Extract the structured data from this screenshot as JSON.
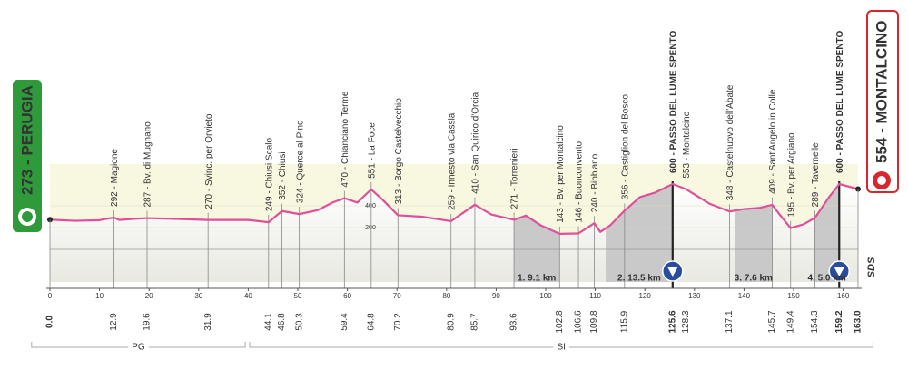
{
  "chart_data": {
    "type": "area",
    "color": "#e0509a",
    "xlim": [
      0,
      163
    ],
    "xticks": [
      0,
      10,
      20,
      30,
      40,
      50,
      60,
      70,
      80,
      90,
      100,
      110,
      120,
      130,
      140,
      150,
      160
    ],
    "ylim": [
      -300,
      700
    ],
    "yticks": [
      200,
      400
    ],
    "grid": true,
    "x": [
      0,
      5,
      10,
      12.9,
      14,
      17,
      19.6,
      25,
      31.9,
      40,
      44.1,
      46.8,
      50.3,
      54,
      57,
      59.4,
      62,
      64.8,
      67,
      70.2,
      75,
      80.9,
      85.7,
      89,
      93.6,
      96,
      99,
      102.8,
      106.6,
      109.8,
      111,
      113,
      115.9,
      119,
      122,
      125.6,
      128.3,
      133,
      137.1,
      140,
      143,
      145.7,
      147,
      149.4,
      152,
      154.3,
      157,
      159.2,
      163
    ],
    "values": [
      273,
      262,
      268,
      292,
      270,
      280,
      287,
      280,
      270,
      270,
      249,
      352,
      324,
      360,
      430,
      470,
      430,
      551,
      460,
      313,
      300,
      259,
      410,
      320,
      271,
      310,
      220,
      143,
      146,
      240,
      160,
      220,
      356,
      480,
      520,
      600,
      553,
      420,
      348,
      370,
      380,
      409,
      330,
      195,
      230,
      289,
      470,
      600,
      554
    ],
    "start": {
      "km": {
        "value": 0,
        "label": "0.0"
      },
      "label": "273 - PERUGIA"
    },
    "finish": {
      "km": {
        "value": 163,
        "label": "163.0"
      },
      "label": "554 - MONTALCINO"
    },
    "waypoints": [
      {
        "km": 12.9,
        "label": "292 - Magione"
      },
      {
        "km": 19.6,
        "label": "287 - Bv. di Mugnano"
      },
      {
        "km": 31.9,
        "label": "270 - Svinc. per Orvieto"
      },
      {
        "km": 44.1,
        "label": "249 - Chiusi Scalo"
      },
      {
        "km": 46.8,
        "label": "352 - Chiusi"
      },
      {
        "km": 50.3,
        "label": "324 - Querce al Pino"
      },
      {
        "km": 59.4,
        "label": "470 - Chianciano Terme"
      },
      {
        "km": 64.8,
        "label": "551 - La Foce"
      },
      {
        "km": 70.2,
        "label": "313 - Borgo Castelvecchio"
      },
      {
        "km": 80.9,
        "label": "259 - Innesto via Cassia"
      },
      {
        "km": 85.7,
        "label": "410 - San Quirico d'Orcia"
      },
      {
        "km": 93.6,
        "label": "271 - Torrenieri"
      },
      {
        "km": 102.8,
        "label": "143 - Bv. per Montalcino"
      },
      {
        "km": 106.6,
        "label": "146 - Buonconvento"
      },
      {
        "km": 109.8,
        "label": "240 - Bibbiano"
      },
      {
        "km": 115.9,
        "label": "356 - Castiglion del Bosco"
      },
      {
        "km": 125.6,
        "label": "600 - PASSO DEL LUME SPENTO",
        "kom": true
      },
      {
        "km": 128.3,
        "label": "553 - Montalcino"
      },
      {
        "km": 137.1,
        "label": "348 - Castelnuovo dell'Abate"
      },
      {
        "km": 145.7,
        "label": "409 - Sant'Angelo in Colle"
      },
      {
        "km": 149.4,
        "label": "195 - Bv. per Argiano"
      },
      {
        "km": 154.3,
        "label": "289 - Tavernelle"
      },
      {
        "km": 159.2,
        "label": "600 - PASSO DEL LUME SPENTO",
        "kom": true
      }
    ],
    "climbs": [
      {
        "from": 93.6,
        "to": 102.8,
        "label": "1. 9.1 km"
      },
      {
        "from": 112.1,
        "to": 125.6,
        "label": "2. 13.5 km"
      },
      {
        "from": 138.1,
        "to": 145.7,
        "label": "3. 7.6 km"
      },
      {
        "from": 154.2,
        "to": 159.2,
        "label": "4. 5.0 km"
      }
    ],
    "regions": [
      {
        "from": -3.7,
        "to": 39.4,
        "label": "PG"
      },
      {
        "from": 40.3,
        "to": 166,
        "label": "SI"
      }
    ],
    "logo": "SDS"
  }
}
